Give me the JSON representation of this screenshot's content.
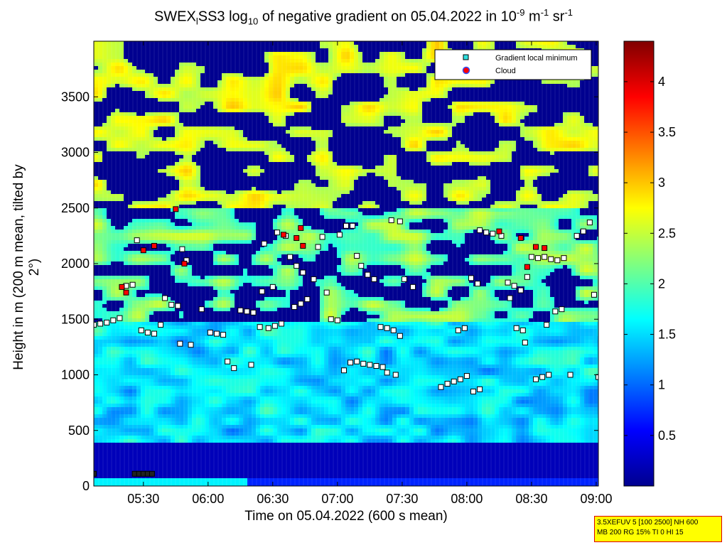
{
  "title": {
    "prefix": "SWEX",
    "sub1": "l",
    "mid": "SS3 log",
    "sub2": "10",
    "suffix": " of negative gradient on 05.04.2022 in 10",
    "sup1": "-9",
    "unit1": " m",
    "sup2": "-1",
    "unit2": " sr",
    "sup3": "-1"
  },
  "footer": {
    "line1": "3.5XEFUV 5 [100 2500] NH 600",
    "line2": "MB 200 RG 15% TI 0 HI 15"
  },
  "colors": {
    "background": "#00008f",
    "marker_min": "#ffffff",
    "marker_cloud": "#ff0000"
  },
  "chart_data": {
    "type": "heatmap",
    "xlabel": "Time on 05.04.2022 (600 s mean)",
    "ylabel": "Height in m (200 m mean, tilted by 2°)",
    "x_ticks": [
      "05:30",
      "06:00",
      "06:30",
      "07:00",
      "07:30",
      "08:00",
      "08:30",
      "09:00"
    ],
    "x_tick_minutes": [
      330,
      360,
      390,
      420,
      450,
      480,
      510,
      540
    ],
    "xlim_minutes": [
      307,
      541
    ],
    "y_ticks": [
      0,
      500,
      1000,
      1500,
      2000,
      2500,
      3000,
      3500
    ],
    "ylim": [
      0,
      4000
    ],
    "colorbar": {
      "colormap": "jet",
      "range": [
        0,
        4.4
      ],
      "ticks": [
        "0.5",
        "1",
        "1.5",
        "2",
        "2.5",
        "3",
        "3.5",
        "4"
      ],
      "tick_values": [
        0.5,
        1,
        1.5,
        2,
        2.5,
        3,
        3.5,
        4
      ]
    },
    "legend": {
      "placement": "top-right",
      "entries": [
        {
          "label": "Gradient local minimum",
          "marker": "square"
        },
        {
          "label": "Cloud",
          "marker": "circle"
        }
      ]
    },
    "gradient_local_minimum": [
      [
        307,
        1450
      ],
      [
        310,
        1460
      ],
      [
        313,
        1470
      ],
      [
        316,
        1490
      ],
      [
        319,
        1510
      ],
      [
        322,
        1800
      ],
      [
        325,
        1810
      ],
      [
        327,
        2210
      ],
      [
        329,
        1400
      ],
      [
        332,
        1380
      ],
      [
        335,
        1370
      ],
      [
        338,
        1450
      ],
      [
        340,
        1690
      ],
      [
        343,
        1630
      ],
      [
        346,
        1620
      ],
      [
        348,
        2130
      ],
      [
        350,
        2030
      ],
      [
        347,
        1280
      ],
      [
        352,
        1270
      ],
      [
        357,
        1590
      ],
      [
        361,
        1380
      ],
      [
        364,
        1370
      ],
      [
        367,
        1360
      ],
      [
        369,
        1120
      ],
      [
        372,
        1060
      ],
      [
        375,
        1580
      ],
      [
        378,
        1570
      ],
      [
        381,
        1560
      ],
      [
        380,
        1090
      ],
      [
        384,
        1430
      ],
      [
        388,
        1420
      ],
      [
        391,
        1440
      ],
      [
        394,
        1460
      ],
      [
        385,
        1750
      ],
      [
        390,
        1790
      ],
      [
        386,
        2180
      ],
      [
        392,
        2280
      ],
      [
        396,
        2250
      ],
      [
        398,
        2060
      ],
      [
        400,
        1610
      ],
      [
        403,
        1640
      ],
      [
        406,
        1680
      ],
      [
        401,
        1980
      ],
      [
        404,
        1920
      ],
      [
        409,
        1860
      ],
      [
        411,
        2150
      ],
      [
        413,
        2240
      ],
      [
        415,
        1740
      ],
      [
        417,
        1500
      ],
      [
        420,
        1490
      ],
      [
        423,
        1040
      ],
      [
        426,
        1110
      ],
      [
        429,
        1120
      ],
      [
        432,
        1100
      ],
      [
        435,
        1090
      ],
      [
        438,
        1080
      ],
      [
        441,
        1070
      ],
      [
        443,
        1020
      ],
      [
        447,
        1000
      ],
      [
        421,
        2260
      ],
      [
        424,
        2340
      ],
      [
        427,
        2340
      ],
      [
        429,
        2070
      ],
      [
        431,
        1980
      ],
      [
        434,
        1900
      ],
      [
        437,
        1860
      ],
      [
        440,
        1430
      ],
      [
        443,
        1420
      ],
      [
        446,
        1400
      ],
      [
        449,
        1350
      ],
      [
        445,
        2390
      ],
      [
        449,
        2380
      ],
      [
        451,
        1860
      ],
      [
        455,
        1790
      ],
      [
        468,
        890
      ],
      [
        471,
        920
      ],
      [
        474,
        940
      ],
      [
        477,
        960
      ],
      [
        480,
        990
      ],
      [
        483,
        850
      ],
      [
        486,
        870
      ],
      [
        476,
        1400
      ],
      [
        479,
        1420
      ],
      [
        482,
        1870
      ],
      [
        485,
        1820
      ],
      [
        486,
        2300
      ],
      [
        489,
        2280
      ],
      [
        492,
        2270
      ],
      [
        496,
        2250
      ],
      [
        499,
        1830
      ],
      [
        502,
        1800
      ],
      [
        505,
        1760
      ],
      [
        503,
        1420
      ],
      [
        506,
        1400
      ],
      [
        500,
        1690
      ],
      [
        510,
        2060
      ],
      [
        513,
        2050
      ],
      [
        516,
        2060
      ],
      [
        519,
        2040
      ],
      [
        522,
        2030
      ],
      [
        525,
        2050
      ],
      [
        512,
        960
      ],
      [
        515,
        980
      ],
      [
        518,
        1000
      ],
      [
        521,
        1570
      ],
      [
        524,
        1590
      ],
      [
        528,
        1000
      ],
      [
        531,
        2250
      ],
      [
        534,
        2290
      ],
      [
        537,
        2370
      ],
      [
        539,
        1720
      ],
      [
        541,
        980
      ],
      [
        517,
        1450
      ],
      [
        508,
        1880
      ],
      [
        507,
        1290
      ]
    ],
    "cloud": [
      [
        320,
        1790
      ],
      [
        322,
        1740
      ],
      [
        330,
        2120
      ],
      [
        335,
        2160
      ],
      [
        345,
        2490
      ],
      [
        349,
        2000
      ],
      [
        395,
        2260
      ],
      [
        401,
        2230
      ],
      [
        403,
        2320
      ],
      [
        404,
        2160
      ],
      [
        495,
        2290
      ],
      [
        505,
        2230
      ],
      [
        508,
        1970
      ],
      [
        512,
        2150
      ],
      [
        516,
        2140
      ]
    ],
    "near_ground_markers": [
      [
        307,
        110
      ],
      [
        326,
        110
      ],
      [
        328,
        110
      ],
      [
        330,
        110
      ],
      [
        332,
        110
      ],
      [
        334,
        110
      ]
    ]
  }
}
